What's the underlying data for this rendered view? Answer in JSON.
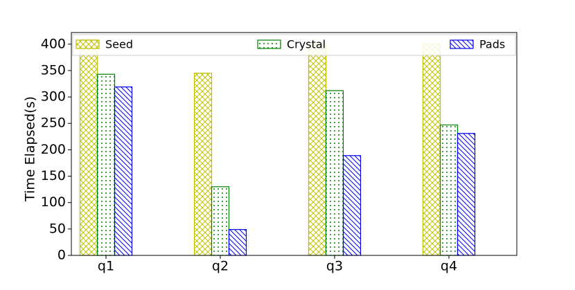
{
  "chart_data": {
    "type": "bar",
    "categories": [
      "q1",
      "q2",
      "q3",
      "q4"
    ],
    "y_label": "Time Elapsed(s)",
    "series": [
      {
        "name": "Seed",
        "color": "#bfbf00",
        "hatch": "cross",
        "values": [
          410,
          345,
          400,
          400
        ]
      },
      {
        "name": "Crystal",
        "color": "#008000",
        "hatch": "dots",
        "values": [
          343,
          130,
          312,
          247
        ]
      },
      {
        "name": "Pads",
        "color": "#0000ff",
        "hatch": "diagonal",
        "values": [
          319,
          49,
          189,
          231
        ]
      }
    ],
    "ylim": [
      0,
      422
    ],
    "yticks": [
      0,
      50,
      100,
      150,
      200,
      250,
      300,
      350,
      400
    ],
    "legend": "top"
  }
}
